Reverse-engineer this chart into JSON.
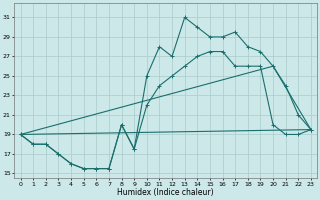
{
  "background_color": "#cce8e8",
  "grid_color": "#aacccc",
  "line_color": "#1a6e6e",
  "xlabel": "Humidex (Indice chaleur)",
  "xlim": [
    -0.5,
    23.5
  ],
  "ylim": [
    14.5,
    32.5
  ],
  "xticks": [
    0,
    1,
    2,
    3,
    4,
    5,
    6,
    7,
    8,
    9,
    10,
    11,
    12,
    13,
    14,
    15,
    16,
    17,
    18,
    19,
    20,
    21,
    22,
    23
  ],
  "yticks": [
    15,
    17,
    19,
    21,
    23,
    25,
    27,
    29,
    31
  ],
  "line1_x": [
    0,
    1,
    2,
    3,
    4,
    5,
    6,
    7,
    8,
    9,
    10,
    11,
    12,
    13,
    14,
    15,
    16,
    17,
    18,
    19,
    20,
    21,
    22,
    23
  ],
  "line1_y": [
    19.0,
    18.0,
    18.0,
    17.0,
    16.0,
    15.5,
    15.5,
    15.5,
    20.0,
    17.5,
    25.0,
    28.0,
    27.0,
    31.0,
    30.0,
    29.0,
    29.0,
    29.5,
    28.0,
    27.5,
    26.0,
    24.0,
    21.0,
    19.5
  ],
  "line2_x": [
    0,
    1,
    2,
    3,
    4,
    5,
    6,
    7,
    8,
    9,
    10,
    11,
    12,
    13,
    14,
    15,
    16,
    17,
    18,
    19,
    20,
    21,
    22,
    23
  ],
  "line2_y": [
    19.0,
    18.0,
    18.0,
    17.0,
    16.0,
    15.5,
    15.5,
    15.5,
    20.0,
    17.5,
    22.0,
    24.0,
    25.0,
    26.0,
    27.0,
    27.5,
    27.5,
    26.0,
    26.0,
    26.0,
    20.0,
    19.0,
    19.0,
    19.5
  ],
  "line3_x": [
    0,
    23
  ],
  "line3_y": [
    19.0,
    19.5
  ],
  "line4_x": [
    0,
    20,
    23
  ],
  "line4_y": [
    19.0,
    26.0,
    19.5
  ]
}
